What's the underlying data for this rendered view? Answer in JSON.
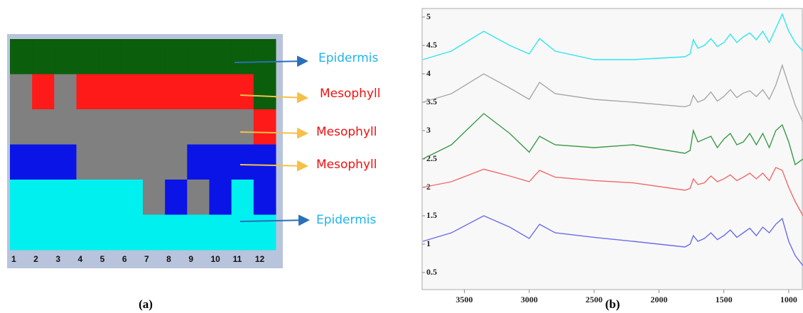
{
  "panel_a": {
    "columns": [
      1,
      2,
      3,
      4,
      5,
      6,
      7,
      8,
      9,
      10,
      11,
      12
    ],
    "labels": [
      "Epidermis",
      "Mesophyll",
      "Mesophyll",
      "Mesophyll",
      "Epidermis"
    ],
    "caption": "(a)"
  },
  "chart_data": {
    "type": "line",
    "caption": "(b)",
    "x": [
      3820,
      3600,
      3350,
      3150,
      3000,
      2920,
      2800,
      2500,
      2200,
      1800,
      1760,
      1735,
      1700,
      1650,
      1600,
      1550,
      1500,
      1450,
      1400,
      1350,
      1300,
      1250,
      1200,
      1150,
      1100,
      1050,
      1000,
      950,
      890
    ],
    "series": [
      {
        "color": "#2ee6f0",
        "values": [
          4.25,
          4.4,
          4.75,
          4.5,
          4.35,
          4.62,
          4.4,
          4.25,
          4.25,
          4.3,
          4.35,
          4.6,
          4.45,
          4.5,
          4.62,
          4.48,
          4.55,
          4.7,
          4.55,
          4.65,
          4.72,
          4.6,
          4.75,
          4.55,
          4.8,
          5.05,
          4.75,
          4.55,
          4.4
        ]
      },
      {
        "color": "#a8a8a8",
        "values": [
          3.5,
          3.65,
          4.0,
          3.75,
          3.55,
          3.85,
          3.65,
          3.55,
          3.5,
          3.42,
          3.45,
          3.62,
          3.5,
          3.55,
          3.68,
          3.52,
          3.6,
          3.72,
          3.58,
          3.66,
          3.7,
          3.6,
          3.72,
          3.55,
          3.8,
          4.15,
          3.8,
          3.45,
          3.15
        ]
      },
      {
        "color": "#3a9a48",
        "values": [
          2.5,
          2.75,
          3.3,
          2.95,
          2.62,
          2.9,
          2.75,
          2.7,
          2.75,
          2.6,
          2.65,
          3.0,
          2.8,
          2.85,
          2.9,
          2.7,
          2.85,
          2.95,
          2.75,
          2.8,
          2.95,
          2.75,
          2.95,
          2.7,
          3.0,
          3.1,
          2.8,
          2.4,
          2.5
        ]
      },
      {
        "color": "#f06a6a",
        "values": [
          2.0,
          2.1,
          2.32,
          2.2,
          2.1,
          2.3,
          2.18,
          2.12,
          2.08,
          1.95,
          1.98,
          2.15,
          2.05,
          2.08,
          2.2,
          2.1,
          2.15,
          2.22,
          2.12,
          2.18,
          2.25,
          2.15,
          2.25,
          2.12,
          2.35,
          2.3,
          2.0,
          1.75,
          1.5
        ]
      },
      {
        "color": "#6b6bea",
        "values": [
          1.05,
          1.2,
          1.5,
          1.3,
          1.1,
          1.35,
          1.2,
          1.12,
          1.05,
          0.95,
          1.0,
          1.15,
          1.05,
          1.1,
          1.2,
          1.08,
          1.15,
          1.25,
          1.12,
          1.2,
          1.28,
          1.15,
          1.3,
          1.2,
          1.35,
          1.45,
          1.05,
          0.8,
          0.62
        ]
      }
    ],
    "xlim": [
      3820,
      890
    ],
    "xticks": [
      3500,
      3000,
      2500,
      2000,
      1500,
      1000
    ],
    "ylim": [
      0.2,
      5.15
    ],
    "yticks": [
      0.5,
      1,
      1.5,
      2,
      2.5,
      3,
      3.5,
      4,
      4.5,
      5
    ]
  }
}
